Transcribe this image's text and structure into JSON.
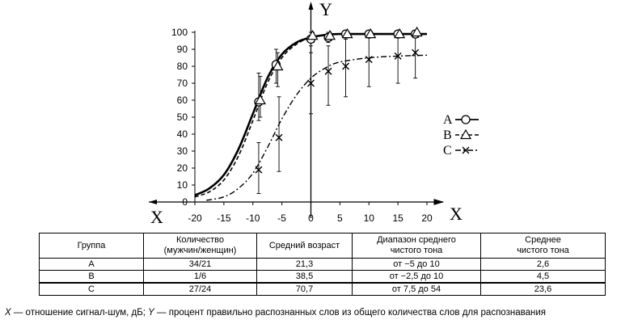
{
  "chart_data": {
    "type": "line",
    "xlabel": "X",
    "ylabel": "Y",
    "xlim": [
      -20,
      20
    ],
    "ylim": [
      0,
      100
    ],
    "x_ticks": [
      "-20",
      "-15",
      "-10",
      "-5",
      "0",
      "5",
      "10",
      "15",
      "20"
    ],
    "y_ticks": [
      "0",
      "10",
      "20",
      "30",
      "40",
      "50",
      "60",
      "70",
      "80",
      "90",
      "100"
    ],
    "legend_position": "right",
    "series": [
      {
        "name": "A",
        "marker": "circle",
        "line_style": "solid",
        "points": [
          {
            "x": -9,
            "y": 59,
            "lo": 48,
            "hi": 76
          },
          {
            "x": -6,
            "y": 81,
            "lo": 70,
            "hi": 90
          },
          {
            "x": 0,
            "y": 96,
            "lo": 92,
            "hi": 100
          },
          {
            "x": 3,
            "y": 97,
            "lo": 94,
            "hi": 100
          },
          {
            "x": 6,
            "y": 99,
            "lo": 97,
            "hi": 100
          },
          {
            "x": 10,
            "y": 99,
            "lo": 97,
            "hi": 100
          },
          {
            "x": 15,
            "y": 99,
            "lo": 97,
            "hi": 100
          },
          {
            "x": 18,
            "y": 99,
            "lo": 97,
            "hi": 100
          }
        ],
        "fit": [
          [
            -20,
            4
          ],
          [
            -17.5,
            8
          ],
          [
            -15,
            16
          ],
          [
            -12.5,
            31
          ],
          [
            -10,
            52
          ],
          [
            -7.5,
            73
          ],
          [
            -5,
            87
          ],
          [
            -2.5,
            94
          ],
          [
            0,
            97
          ],
          [
            2.5,
            98.5
          ],
          [
            5,
            99
          ],
          [
            10,
            99
          ],
          [
            15,
            99
          ],
          [
            20,
            99
          ]
        ]
      },
      {
        "name": "B",
        "marker": "triangle",
        "line_style": "dashed",
        "points": [
          {
            "x": -9,
            "y": 60,
            "lo": 50,
            "hi": 74
          },
          {
            "x": -6,
            "y": 80,
            "lo": 68,
            "hi": 88
          },
          {
            "x": 0,
            "y": 98,
            "lo": 94,
            "hi": 100
          },
          {
            "x": 3,
            "y": 98,
            "lo": 95,
            "hi": 100
          },
          {
            "x": 6,
            "y": 99,
            "lo": 97,
            "hi": 100
          },
          {
            "x": 10,
            "y": 99,
            "lo": 97,
            "hi": 100
          },
          {
            "x": 15,
            "y": 99,
            "lo": 97,
            "hi": 100
          },
          {
            "x": 18,
            "y": 100,
            "lo": 97,
            "hi": 100
          }
        ],
        "fit": [
          [
            -20,
            3
          ],
          [
            -17.5,
            6
          ],
          [
            -15,
            13
          ],
          [
            -12.5,
            27
          ],
          [
            -10,
            48
          ],
          [
            -7.5,
            70
          ],
          [
            -5,
            85
          ],
          [
            -2.5,
            93
          ],
          [
            0,
            97
          ],
          [
            2.5,
            98.5
          ],
          [
            5,
            99
          ],
          [
            10,
            99
          ],
          [
            15,
            99
          ],
          [
            20,
            99
          ]
        ]
      },
      {
        "name": "C",
        "marker": "x",
        "line_style": "dash-dot",
        "points": [
          {
            "x": -9,
            "y": 19,
            "lo": 5,
            "hi": 35
          },
          {
            "x": -5.5,
            "y": 38,
            "lo": 18,
            "hi": 62
          },
          {
            "x": 0,
            "y": 70,
            "lo": 52,
            "hi": 88
          },
          {
            "x": 3,
            "y": 77,
            "lo": 57,
            "hi": 92
          },
          {
            "x": 6,
            "y": 80,
            "lo": 62,
            "hi": 96
          },
          {
            "x": 10,
            "y": 84,
            "lo": 68,
            "hi": 98
          },
          {
            "x": 15,
            "y": 86,
            "lo": 70,
            "hi": 99
          },
          {
            "x": 18,
            "y": 88,
            "lo": 73,
            "hi": 100
          }
        ],
        "fit": [
          [
            -18,
            1
          ],
          [
            -15,
            3
          ],
          [
            -12.5,
            8
          ],
          [
            -10,
            17
          ],
          [
            -7.5,
            32
          ],
          [
            -5,
            49
          ],
          [
            -2.5,
            63
          ],
          [
            0,
            73
          ],
          [
            2.5,
            79
          ],
          [
            5,
            82.5
          ],
          [
            10,
            85
          ],
          [
            15,
            86
          ],
          [
            20,
            86.5
          ]
        ]
      }
    ]
  },
  "table": {
    "headers": [
      "Группа",
      "Количество\n(мужчин/женщин)",
      "Средний возраст",
      "Диапазон среднего\nчистого тона",
      "Среднее\nчистого тона"
    ],
    "rows": [
      [
        "A",
        "34/21",
        "21,3",
        "от −5 до 10",
        "2,6"
      ],
      [
        "B",
        "1/6",
        "38,5",
        "от −2,5 до 10",
        "4,5"
      ],
      [
        "C",
        "27/24",
        "70,7",
        "от 7,5 до 54",
        "23,6"
      ]
    ]
  },
  "caption": {
    "x_symbol": "X",
    "x_text": " — отношение сигнал-шум, дБ; ",
    "y_symbol": "Y",
    "y_text": " — процент правильно распознанных слов из общего количества слов для распознавания"
  }
}
